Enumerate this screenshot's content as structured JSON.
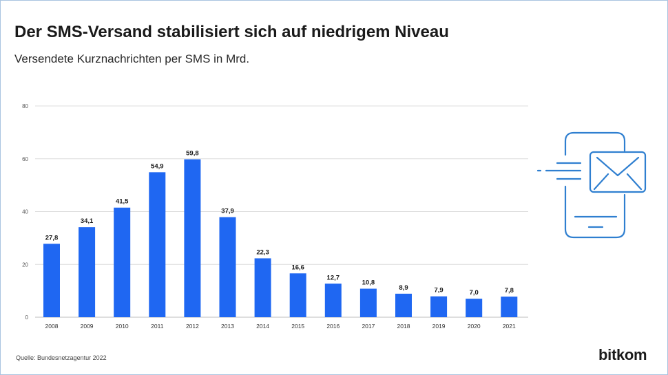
{
  "header": {
    "title": "Der SMS-Versand stabilisiert sich auf niedrigem Niveau",
    "subtitle": "Versendete Kurznachrichten per SMS in Mrd."
  },
  "footer": {
    "source": "Quelle: Bundesnetzagentur 2022",
    "logo_text": "bitkom"
  },
  "colors": {
    "bar": "#1f67f2",
    "grid": "#dcdcdc",
    "icon": "#2f7fd0"
  },
  "icon": {
    "name": "phone-message-icon"
  },
  "chart_data": {
    "type": "bar",
    "categories": [
      "2008",
      "2009",
      "2010",
      "2011",
      "2012",
      "2013",
      "2014",
      "2015",
      "2016",
      "2017",
      "2018",
      "2019",
      "2020",
      "2021"
    ],
    "values": [
      27.8,
      34.1,
      41.5,
      54.9,
      59.8,
      37.9,
      22.3,
      16.6,
      12.7,
      10.8,
      8.9,
      7.9,
      7.0,
      7.8
    ],
    "value_labels": [
      "27,8",
      "34,1",
      "41,5",
      "54,9",
      "59,8",
      "37,9",
      "22,3",
      "16,6",
      "12,7",
      "10,8",
      "8,9",
      "7,9",
      "7,0",
      "7,8"
    ],
    "yticks": [
      0,
      20,
      40,
      60,
      80
    ],
    "ylim": [
      0,
      80
    ],
    "grid": true
  }
}
